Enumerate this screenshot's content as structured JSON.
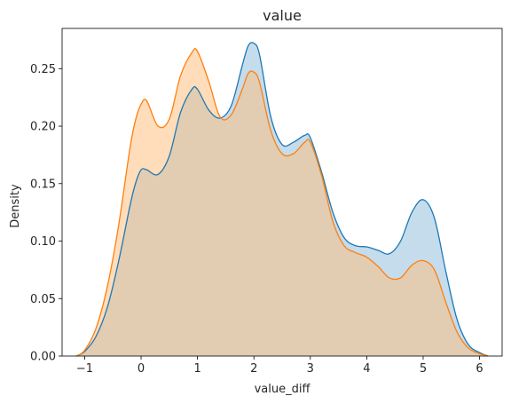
{
  "chart_data": {
    "type": "area",
    "title": "value",
    "xlabel": "value_diff",
    "ylabel": "Density",
    "xlim": [
      -1.4,
      6.4
    ],
    "ylim": [
      0,
      0.285
    ],
    "xticks": [
      -1,
      0,
      1,
      2,
      3,
      4,
      5,
      6
    ],
    "yticks": [
      0.0,
      0.05,
      0.1,
      0.15,
      0.2,
      0.25
    ],
    "ytick_labels": [
      "0.00",
      "0.05",
      "0.10",
      "0.15",
      "0.20",
      "0.25"
    ],
    "grid": false,
    "legend": "none",
    "x": [
      -1.15,
      -1.0,
      -0.8,
      -0.6,
      -0.4,
      -0.2,
      -0.1,
      0.0,
      0.1,
      0.3,
      0.5,
      0.7,
      0.9,
      1.0,
      1.2,
      1.4,
      1.6,
      1.8,
      1.9,
      2.0,
      2.1,
      2.3,
      2.5,
      2.7,
      2.9,
      3.0,
      3.2,
      3.4,
      3.6,
      3.8,
      4.0,
      4.2,
      4.4,
      4.6,
      4.8,
      5.0,
      5.2,
      5.4,
      5.6,
      5.8,
      6.0,
      6.15
    ],
    "series": [
      {
        "color": "#1f77b4",
        "fill": "#1f77b4",
        "values": [
          0.0,
          0.004,
          0.017,
          0.042,
          0.082,
          0.13,
          0.15,
          0.162,
          0.162,
          0.158,
          0.174,
          0.212,
          0.232,
          0.232,
          0.214,
          0.207,
          0.218,
          0.254,
          0.27,
          0.272,
          0.262,
          0.208,
          0.184,
          0.186,
          0.192,
          0.19,
          0.16,
          0.125,
          0.103,
          0.096,
          0.095,
          0.092,
          0.089,
          0.1,
          0.125,
          0.136,
          0.12,
          0.074,
          0.032,
          0.01,
          0.003,
          0.0
        ]
      },
      {
        "color": "#ff7f0e",
        "fill": "#ffbb78",
        "values": [
          0.0,
          0.005,
          0.024,
          0.06,
          0.113,
          0.18,
          0.205,
          0.219,
          0.222,
          0.2,
          0.206,
          0.244,
          0.264,
          0.265,
          0.239,
          0.208,
          0.21,
          0.233,
          0.246,
          0.247,
          0.238,
          0.196,
          0.176,
          0.176,
          0.186,
          0.186,
          0.157,
          0.117,
          0.096,
          0.09,
          0.086,
          0.078,
          0.068,
          0.068,
          0.079,
          0.083,
          0.075,
          0.047,
          0.021,
          0.007,
          0.002,
          0.0
        ]
      }
    ]
  }
}
